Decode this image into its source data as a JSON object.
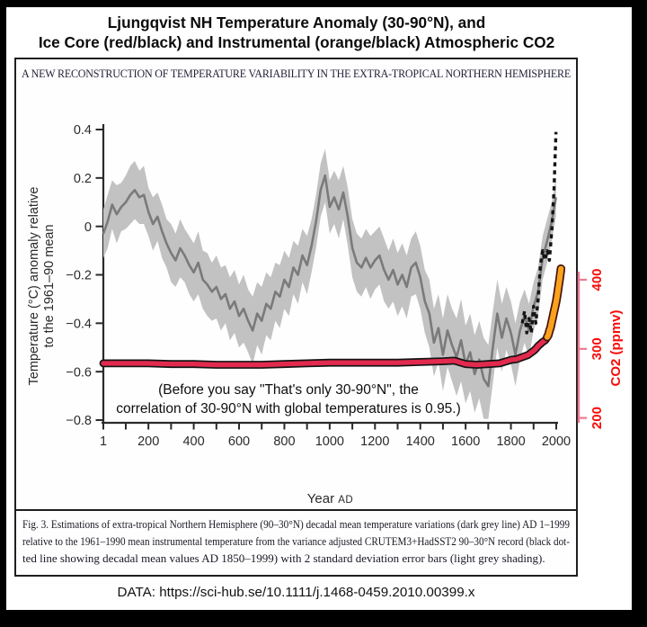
{
  "title": {
    "line1": "Ljungqvist NH Temperature Anomaly (30-90°N), and",
    "line2": "Ice Core (red/black) and Instrumental (orange/black) Atmospheric CO2"
  },
  "figure": {
    "header": "A NEW RECONSTRUCTION OF TEMPERATURE VARIABILITY IN THE EXTRA-TROPICAL NORTHERN HEMISPHERE",
    "caption_lines": [
      "Fig. 3. Estimations of extra-tropical Northern Hemisphere (90–30°N) decadal mean temperature variations (dark grey line) AD 1–1999",
      "relative to the 1961–1990 mean instrumental temperature from the variance adjusted CRUTEM3+HadSST2 90–30°N record (black dot-",
      "ted line showing decadal mean values AD 1850–1999) with 2 standard deviation error bars (light grey shading)."
    ]
  },
  "source_line": "DATA: https://sci-hub.se/10.1111/j.1468-0459.2010.00399.x",
  "chart_data": {
    "type": "line",
    "title": "Ljungqvist NH temperature reconstruction with atmospheric CO2 overlay",
    "x_axis": {
      "label_main": "Year",
      "label_suffix": "AD",
      "range": [
        1,
        2000
      ],
      "minor_tick_interval": 100,
      "tick_years": [
        1,
        200,
        400,
        600,
        800,
        1000,
        1200,
        1400,
        1600,
        1800,
        2000
      ],
      "ticks": [
        "1",
        "200",
        "400",
        "600",
        "800",
        "1000",
        "1200",
        "1400",
        "1600",
        "1800",
        "2000"
      ]
    },
    "y_axis_left": {
      "label_line1": "Temperature (°C) anomaly relative",
      "label_line2": "to the 1961–90 mean",
      "range": [
        -0.8,
        0.4
      ],
      "tick_values": [
        0.4,
        0.2,
        0,
        -0.2,
        -0.4,
        -0.6,
        -0.8
      ],
      "ticks": [
        "0.4",
        "0.2",
        "0",
        "−0.2",
        "−0.4",
        "−0.6",
        "−0.8"
      ]
    },
    "y_axis_right": {
      "label": "CO2 (ppmv)",
      "range_shown": [
        200,
        430
      ],
      "tick_values": [
        400,
        300,
        200
      ],
      "ticks": [
        "400",
        "300",
        "200"
      ]
    },
    "annotation": {
      "line1": "(Before you say \"That's only 30-90°N\", the",
      "line2": "correlation of 30-90°N with global temperatures is 0.95.)"
    },
    "band_meaning": "2 standard deviation error bars (light grey shading); points are [year, anomaly, band half-width]",
    "colors": {
      "band": "#c2c2c2",
      "reconstruction": "#7a7a7a",
      "instrumental_dotted": "#151515",
      "co2_ice_core": "#e22a4e",
      "co2_ice_core_outline": "#141414",
      "co2_instrumental": "#f9a21c",
      "co2_instrumental_outline": "#45120e",
      "right_axis": "#ef7b92",
      "right_axis_text": "#f60d0a",
      "axis": "#2a2a2a"
    },
    "series": [
      {
        "name": "reconstruction_decadal_mean",
        "axis": "left",
        "style": "solid-with-band",
        "points": [
          [
            1,
            -0.03,
            0.1
          ],
          [
            20,
            0.02,
            0.11
          ],
          [
            40,
            0.09,
            0.1
          ],
          [
            60,
            0.05,
            0.12
          ],
          [
            80,
            0.08,
            0.1
          ],
          [
            100,
            0.1,
            0.11
          ],
          [
            120,
            0.13,
            0.12
          ],
          [
            140,
            0.15,
            0.12
          ],
          [
            160,
            0.12,
            0.11
          ],
          [
            180,
            0.13,
            0.12
          ],
          [
            200,
            0.06,
            0.1
          ],
          [
            220,
            0.01,
            0.11
          ],
          [
            240,
            0.04,
            0.1
          ],
          [
            260,
            -0.02,
            0.11
          ],
          [
            280,
            -0.07,
            0.1
          ],
          [
            300,
            -0.11,
            0.12
          ],
          [
            320,
            -0.14,
            0.11
          ],
          [
            340,
            -0.09,
            0.12
          ],
          [
            360,
            -0.12,
            0.11
          ],
          [
            380,
            -0.16,
            0.12
          ],
          [
            400,
            -0.19,
            0.12
          ],
          [
            420,
            -0.15,
            0.13
          ],
          [
            440,
            -0.22,
            0.12
          ],
          [
            460,
            -0.24,
            0.13
          ],
          [
            480,
            -0.27,
            0.12
          ],
          [
            500,
            -0.25,
            0.13
          ],
          [
            520,
            -0.3,
            0.13
          ],
          [
            540,
            -0.28,
            0.12
          ],
          [
            560,
            -0.34,
            0.13
          ],
          [
            580,
            -0.31,
            0.13
          ],
          [
            600,
            -0.37,
            0.13
          ],
          [
            620,
            -0.34,
            0.14
          ],
          [
            640,
            -0.39,
            0.13
          ],
          [
            660,
            -0.43,
            0.14
          ],
          [
            680,
            -0.36,
            0.13
          ],
          [
            700,
            -0.39,
            0.14
          ],
          [
            720,
            -0.32,
            0.13
          ],
          [
            740,
            -0.34,
            0.13
          ],
          [
            760,
            -0.27,
            0.12
          ],
          [
            780,
            -0.29,
            0.13
          ],
          [
            800,
            -0.22,
            0.12
          ],
          [
            820,
            -0.25,
            0.12
          ],
          [
            840,
            -0.17,
            0.11
          ],
          [
            860,
            -0.2,
            0.12
          ],
          [
            880,
            -0.12,
            0.11
          ],
          [
            900,
            -0.16,
            0.12
          ],
          [
            920,
            -0.08,
            0.11
          ],
          [
            940,
            0.02,
            0.11
          ],
          [
            960,
            0.15,
            0.11
          ],
          [
            980,
            0.21,
            0.11
          ],
          [
            1000,
            0.08,
            0.11
          ],
          [
            1020,
            0.12,
            0.11
          ],
          [
            1040,
            0.07,
            0.12
          ],
          [
            1060,
            0.14,
            0.11
          ],
          [
            1080,
            0.04,
            0.12
          ],
          [
            1100,
            -0.09,
            0.12
          ],
          [
            1120,
            -0.15,
            0.12
          ],
          [
            1140,
            -0.17,
            0.12
          ],
          [
            1160,
            -0.13,
            0.12
          ],
          [
            1180,
            -0.17,
            0.13
          ],
          [
            1200,
            -0.14,
            0.12
          ],
          [
            1220,
            -0.12,
            0.12
          ],
          [
            1240,
            -0.18,
            0.13
          ],
          [
            1260,
            -0.22,
            0.12
          ],
          [
            1280,
            -0.18,
            0.13
          ],
          [
            1300,
            -0.24,
            0.13
          ],
          [
            1320,
            -0.2,
            0.13
          ],
          [
            1340,
            -0.25,
            0.13
          ],
          [
            1360,
            -0.17,
            0.12
          ],
          [
            1380,
            -0.15,
            0.13
          ],
          [
            1400,
            -0.21,
            0.13
          ],
          [
            1420,
            -0.31,
            0.13
          ],
          [
            1440,
            -0.36,
            0.14
          ],
          [
            1460,
            -0.48,
            0.14
          ],
          [
            1480,
            -0.42,
            0.14
          ],
          [
            1500,
            -0.53,
            0.15
          ],
          [
            1520,
            -0.43,
            0.15
          ],
          [
            1540,
            -0.49,
            0.15
          ],
          [
            1560,
            -0.54,
            0.16
          ],
          [
            1580,
            -0.47,
            0.17
          ],
          [
            1600,
            -0.57,
            0.16
          ],
          [
            1620,
            -0.52,
            0.16
          ],
          [
            1640,
            -0.61,
            0.16
          ],
          [
            1660,
            -0.55,
            0.16
          ],
          [
            1680,
            -0.63,
            0.17
          ],
          [
            1700,
            -0.66,
            0.17
          ],
          [
            1720,
            -0.5,
            0.15
          ],
          [
            1740,
            -0.36,
            0.14
          ],
          [
            1760,
            -0.46,
            0.14
          ],
          [
            1780,
            -0.38,
            0.13
          ],
          [
            1800,
            -0.44,
            0.13
          ],
          [
            1820,
            -0.53,
            0.13
          ],
          [
            1840,
            -0.43,
            0.12
          ],
          [
            1860,
            -0.37,
            0.11
          ],
          [
            1880,
            -0.43,
            0.11
          ],
          [
            1900,
            -0.33,
            0.1
          ],
          [
            1920,
            -0.27,
            0.1
          ],
          [
            1940,
            -0.13,
            0.09
          ],
          [
            1960,
            -0.06,
            0.09
          ],
          [
            1980,
            0.02,
            0.08
          ],
          [
            1999,
            0.12,
            0.08
          ]
        ]
      },
      {
        "name": "instrumental_decadal_mean",
        "axis": "left",
        "style": "dashed",
        "points": [
          [
            1850,
            -0.4
          ],
          [
            1860,
            -0.35
          ],
          [
            1870,
            -0.44
          ],
          [
            1880,
            -0.38
          ],
          [
            1890,
            -0.44
          ],
          [
            1900,
            -0.33
          ],
          [
            1910,
            -0.4
          ],
          [
            1920,
            -0.3
          ],
          [
            1930,
            -0.16
          ],
          [
            1940,
            -0.1
          ],
          [
            1950,
            -0.14
          ],
          [
            1960,
            -0.1
          ],
          [
            1970,
            -0.14
          ],
          [
            1980,
            -0.02
          ],
          [
            1990,
            0.15
          ],
          [
            1999,
            0.39
          ]
        ]
      },
      {
        "name": "co2_ice_core",
        "axis": "right",
        "style": "thick-outlined",
        "points": [
          [
            1,
            279
          ],
          [
            100,
            279
          ],
          [
            200,
            279
          ],
          [
            300,
            278
          ],
          [
            400,
            278
          ],
          [
            500,
            277
          ],
          [
            600,
            277
          ],
          [
            700,
            277
          ],
          [
            800,
            278
          ],
          [
            900,
            279
          ],
          [
            1000,
            280
          ],
          [
            1100,
            280
          ],
          [
            1200,
            280
          ],
          [
            1300,
            280
          ],
          [
            1400,
            281
          ],
          [
            1500,
            282
          ],
          [
            1550,
            283
          ],
          [
            1600,
            278
          ],
          [
            1650,
            277
          ],
          [
            1700,
            278
          ],
          [
            1750,
            279
          ],
          [
            1800,
            284
          ],
          [
            1825,
            285
          ],
          [
            1850,
            288
          ],
          [
            1875,
            291
          ],
          [
            1900,
            297
          ],
          [
            1910,
            300
          ],
          [
            1920,
            304
          ],
          [
            1930,
            307
          ],
          [
            1940,
            310
          ],
          [
            1950,
            312
          ],
          [
            1955,
            314
          ],
          [
            1960,
            317
          ]
        ]
      },
      {
        "name": "co2_instrumental",
        "axis": "right",
        "style": "thick-outlined",
        "points": [
          [
            1960,
            317
          ],
          [
            1965,
            320
          ],
          [
            1970,
            326
          ],
          [
            1975,
            331
          ],
          [
            1980,
            339
          ],
          [
            1985,
            346
          ],
          [
            1990,
            354
          ],
          [
            1995,
            361
          ],
          [
            2000,
            369
          ],
          [
            2005,
            379
          ],
          [
            2010,
            390
          ],
          [
            2015,
            401
          ],
          [
            2021,
            416
          ]
        ]
      }
    ]
  }
}
